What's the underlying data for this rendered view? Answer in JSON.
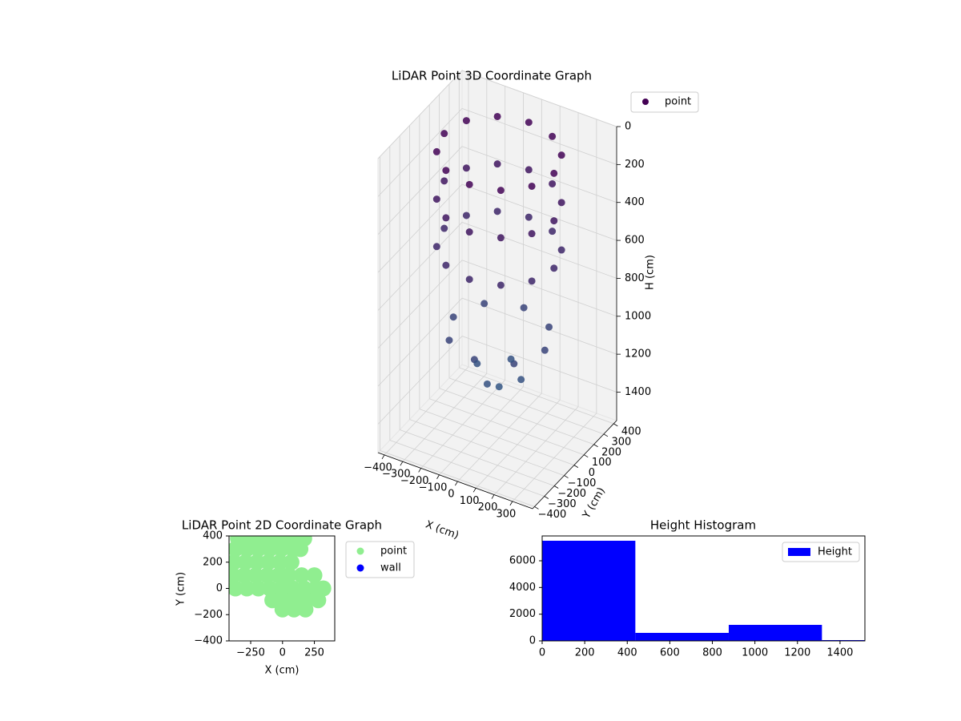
{
  "chart_data": [
    {
      "type": "scatter3d",
      "title": "LiDAR Point 3D Coordinate Graph",
      "xlabel": "X (cm)",
      "ylabel": "Y (cm)",
      "zlabel": "H (cm)",
      "series": [
        {
          "name": "point",
          "color": "#440154",
          "color_range": [
            "#440154",
            "#31688e"
          ],
          "x": [
            300,
            260,
            150,
            0,
            -150,
            -260,
            -300,
            -260,
            -150,
            0,
            150,
            260,
            300,
            260,
            150,
            0,
            -150,
            -260,
            -300,
            -260,
            -150,
            0,
            150,
            260,
            300,
            260,
            150,
            0,
            -150,
            -260,
            -300,
            -260,
            -150,
            0,
            150,
            260,
            250,
            177,
            0,
            -177,
            -250,
            -177,
            0,
            177,
            120,
            0,
            -120,
            0,
            0
          ],
          "y": [
            0,
            150,
            260,
            300,
            260,
            150,
            0,
            -150,
            -260,
            -300,
            -260,
            -150,
            0,
            150,
            260,
            300,
            260,
            150,
            0,
            -150,
            -260,
            -300,
            -260,
            -150,
            0,
            150,
            260,
            300,
            260,
            150,
            0,
            -150,
            -260,
            -300,
            -260,
            -150,
            0,
            177,
            250,
            177,
            0,
            -177,
            -250,
            -177,
            0,
            120,
            0,
            -120,
            0
          ],
          "z": [
            50,
            50,
            50,
            50,
            50,
            50,
            50,
            50,
            50,
            50,
            50,
            50,
            300,
            300,
            300,
            300,
            300,
            300,
            300,
            300,
            300,
            300,
            300,
            300,
            550,
            550,
            550,
            550,
            550,
            550,
            550,
            550,
            550,
            550,
            550,
            550,
            1000,
            1000,
            1000,
            1000,
            1000,
            1000,
            1000,
            1000,
            1200,
            1200,
            1200,
            1200,
            1280
          ]
        }
      ],
      "xlim": [
        -435,
        410
      ],
      "ylim": [
        -420,
        430
      ],
      "zlim": [
        0,
        1550
      ],
      "z_inverted": true,
      "grid": true,
      "legend": "upper right",
      "xticks": [
        {
          "value": -400,
          "label": "−400"
        },
        {
          "value": -300,
          "label": "−300"
        },
        {
          "value": -200,
          "label": "−200"
        },
        {
          "value": -100,
          "label": "−100"
        },
        0,
        100,
        200,
        300
      ],
      "yticks": [
        {
          "value": -400,
          "label": "−400"
        },
        {
          "value": -300,
          "label": "−300"
        },
        {
          "value": -200,
          "label": "−200"
        },
        {
          "value": -100,
          "label": "−100"
        },
        0,
        100,
        200,
        300,
        400
      ],
      "zticks": [
        0,
        200,
        400,
        600,
        800,
        1000,
        1200,
        1400
      ]
    },
    {
      "type": "scatter",
      "title": "LiDAR Point 2D Coordinate Graph",
      "xlabel": "X (cm)",
      "ylabel": "Y (cm)",
      "series": [
        {
          "name": "point",
          "color": "#90ee90",
          "x": [
            -350,
            -260,
            -170,
            -80,
            10,
            100,
            170,
            -370,
            -280,
            -190,
            -100,
            -10,
            80,
            140,
            -380,
            -290,
            -200,
            -110,
            -20,
            70,
            -390,
            -300,
            -210,
            -120,
            -30,
            50,
            150,
            250,
            -370,
            -280,
            -190,
            -100,
            -10,
            80,
            170,
            260,
            320,
            -80,
            10,
            100,
            190,
            280,
            0,
            90,
            180
          ],
          "y": [
            380,
            380,
            380,
            380,
            380,
            380,
            380,
            300,
            300,
            300,
            300,
            300,
            300,
            300,
            200,
            200,
            200,
            200,
            200,
            200,
            100,
            100,
            100,
            100,
            100,
            100,
            100,
            100,
            0,
            0,
            0,
            0,
            0,
            0,
            0,
            0,
            0,
            -90,
            -90,
            -90,
            -90,
            -90,
            -160,
            -160,
            -160
          ]
        },
        {
          "name": "wall",
          "color": "#0000ff",
          "x": [],
          "y": []
        }
      ],
      "xlim": [
        -420,
        410
      ],
      "ylim": [
        -400,
        400
      ],
      "legend": "outside right",
      "xticks": [
        {
          "value": -250,
          "label": "−250"
        },
        0,
        250
      ],
      "yticks": [
        {
          "value": -400,
          "label": "−400"
        },
        {
          "value": -200,
          "label": "−200"
        },
        0,
        200,
        400
      ]
    },
    {
      "type": "histogram",
      "title": "Height Histogram",
      "bins": [
        0,
        438,
        877,
        1315,
        1753
      ],
      "series": [
        {
          "name": "Height",
          "color": "#0000ff",
          "values": [
            7500,
            600,
            1200,
            60
          ]
        }
      ],
      "xlim": [
        0,
        1517
      ],
      "ylim": [
        0,
        7860
      ],
      "legend": "upper right",
      "xticks": [
        0,
        200,
        400,
        600,
        800,
        1000,
        1200,
        1400
      ],
      "yticks": [
        0,
        2000,
        4000,
        6000
      ]
    }
  ]
}
